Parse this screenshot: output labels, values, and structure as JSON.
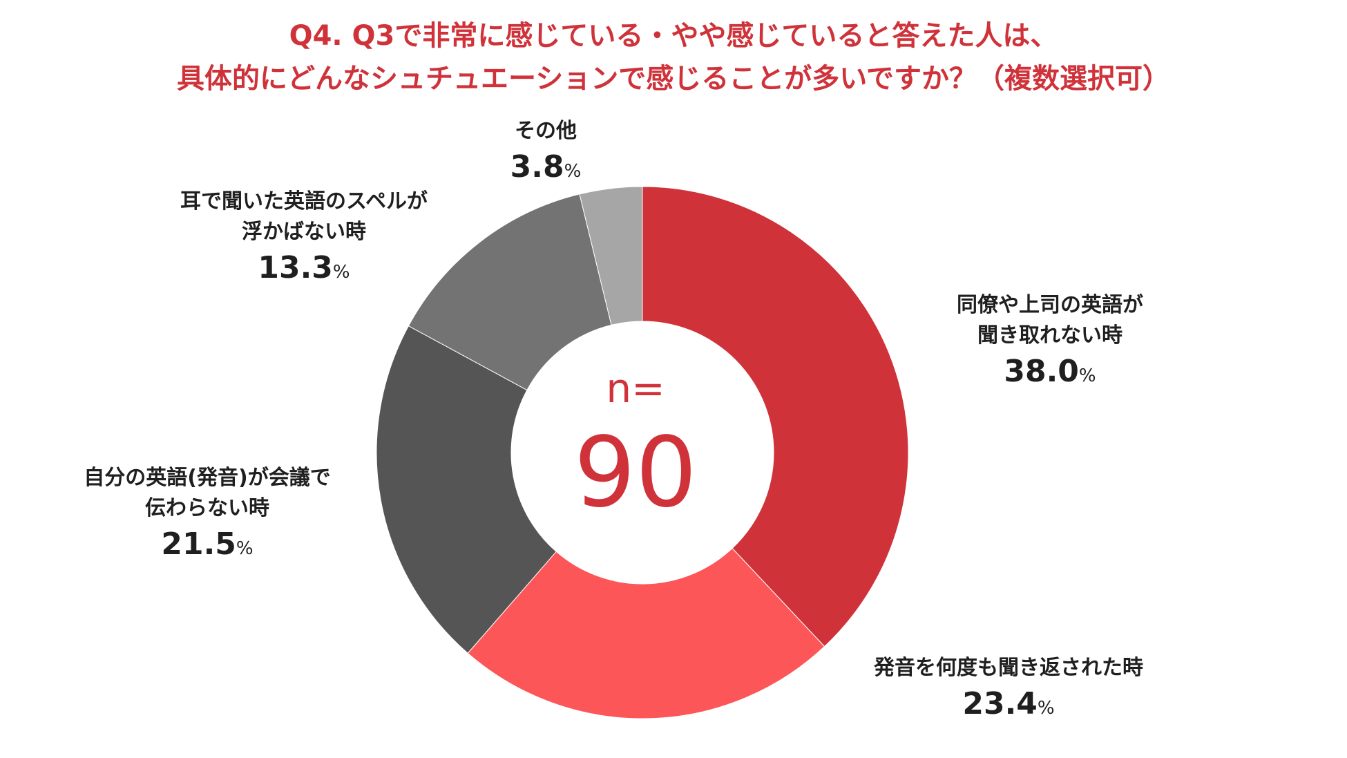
{
  "title": {
    "line1": "Q4. Q3で非常に感じている・やや感じていると答えた人は、",
    "line2": "具体的にどんなシュチュエーションで感じることが多いですか？（複数選択可）"
  },
  "center": {
    "label": "n=",
    "value": "90"
  },
  "chart_data": {
    "type": "pie",
    "donut": true,
    "title": "Q4. Q3で非常に感じている・やや感じていると答えた人は、具体的にどんなシュチュエーションで感じることが多いですか？（複数選択可）",
    "n": 90,
    "unit": "%",
    "slices": [
      {
        "label_lines": [
          "同僚や上司の英語が",
          "聞き取れない時"
        ],
        "value": 38.0,
        "value_text": "38.0",
        "color": "#d0323a"
      },
      {
        "label_lines": [
          "発音を何度も聞き返された時"
        ],
        "value": 23.4,
        "value_text": "23.4",
        "color": "#fc5658"
      },
      {
        "label_lines": [
          "自分の英語(発音)が会議で",
          "伝わらない時"
        ],
        "value": 21.5,
        "value_text": "21.5",
        "color": "#555555"
      },
      {
        "label_lines": [
          "耳で聞いた英語のスペルが",
          "浮かばない時"
        ],
        "value": 13.3,
        "value_text": "13.3",
        "color": "#737373"
      },
      {
        "label_lines": [
          "その他"
        ],
        "value": 3.8,
        "value_text": "3.8",
        "color": "#a6a6a6"
      }
    ]
  }
}
